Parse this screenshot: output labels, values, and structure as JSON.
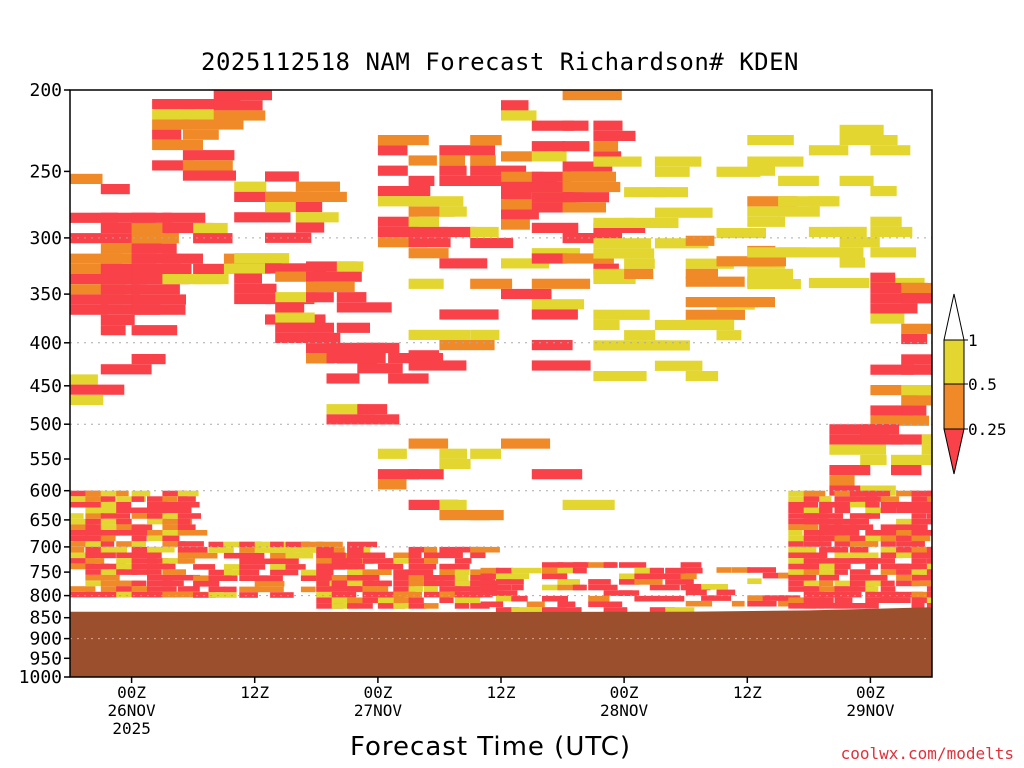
{
  "title": "2025112518 NAM Forecast Richardson# KDEN",
  "watermark": "coolwx.com/modelts",
  "chart_data": {
    "type": "heatmap",
    "title": "2025112518 NAM Forecast Richardson# KDEN",
    "xlabel": "Forecast Time (UTC)",
    "ylabel": "",
    "y_log_scale": true,
    "y_inverted": true,
    "ylim_hpa": [
      1000,
      200
    ],
    "y_ticks": [
      "200",
      "250",
      "300",
      "350",
      "400",
      "450",
      "500",
      "550",
      "600",
      "650",
      "700",
      "750",
      "800",
      "850",
      "900",
      "950",
      "1000"
    ],
    "y_grid_dotted_at": [
      300,
      400,
      500,
      600,
      700,
      800,
      900,
      1000
    ],
    "x_hours_range": [
      -6,
      78
    ],
    "x_ticks": [
      {
        "hour": 0,
        "lines": [
          "00Z",
          "26NOV",
          "2025"
        ]
      },
      {
        "hour": 12,
        "lines": [
          "12Z"
        ]
      },
      {
        "hour": 24,
        "lines": [
          "00Z",
          "27NOV"
        ]
      },
      {
        "hour": 36,
        "lines": [
          "12Z"
        ]
      },
      {
        "hour": 48,
        "lines": [
          "00Z",
          "28NOV"
        ]
      },
      {
        "hour": 60,
        "lines": [
          "12Z"
        ]
      },
      {
        "hour": 72,
        "lines": [
          "00Z",
          "29NOV"
        ]
      }
    ],
    "colorbar": {
      "levels": [
        "1",
        "0.5",
        "0.25"
      ],
      "bins": [
        {
          "range": "0.5-1",
          "color": "#e3d630"
        },
        {
          "range": "0.25-0.5",
          "color": "#f08a28"
        },
        {
          "range": "<0.25",
          "color": "#f94149"
        }
      ],
      "above_color": "#ffffff"
    },
    "terrain": {
      "color": "#9c4f2c",
      "surface_pressure_hpa": [
        {
          "hour": -6,
          "p": 836
        },
        {
          "hour": 30,
          "p": 837
        },
        {
          "hour": 54,
          "p": 836
        },
        {
          "hour": 66,
          "p": 833
        },
        {
          "hour": 78,
          "p": 826
        }
      ]
    },
    "colors": {
      "yellow": "#e3d630",
      "orange": "#f08a28",
      "red": "#f94149",
      "terrain": "#9c4f2c",
      "grid": "#aaaaaa"
    },
    "regions": [
      {
        "h": [
          -6,
          2
        ],
        "p": [
          280,
          390
        ],
        "level": "<0.25",
        "fill": "dense"
      },
      {
        "h": [
          -6,
          1
        ],
        "p": [
          390,
          470
        ],
        "level": "mixed",
        "fill": "sparse"
      },
      {
        "h": [
          -6,
          2
        ],
        "p": [
          225,
          260
        ],
        "level": "mixed",
        "fill": "sparse"
      },
      {
        "h": [
          2,
          7
        ],
        "p": [
          205,
          250
        ],
        "level": "mixed",
        "fill": "medium"
      },
      {
        "h": [
          3,
          12
        ],
        "p": [
          280,
          340
        ],
        "level": "mixed",
        "fill": "medium"
      },
      {
        "h": [
          8,
          11
        ],
        "p": [
          200,
          215
        ],
        "level": "<0.25",
        "fill": "dense"
      },
      {
        "h": [
          10,
          18
        ],
        "p": [
          250,
          380
        ],
        "level": "mixed",
        "fill": "medium"
      },
      {
        "h": [
          14,
          22
        ],
        "p": [
          320,
          420
        ],
        "level": "<0.25",
        "fill": "medium"
      },
      {
        "h": [
          19,
          27
        ],
        "p": [
          400,
          500
        ],
        "level": "<0.25",
        "fill": "medium"
      },
      {
        "h": [
          24,
          34
        ],
        "p": [
          220,
          300
        ],
        "level": "mixed",
        "fill": "medium"
      },
      {
        "h": [
          27,
          40
        ],
        "p": [
          300,
          420
        ],
        "level": "mixed",
        "fill": "sparse"
      },
      {
        "h": [
          36,
          42
        ],
        "p": [
          255,
          290
        ],
        "level": "<0.25",
        "fill": "dense"
      },
      {
        "h": [
          36,
          48
        ],
        "p": [
          200,
          340
        ],
        "level": "mixed",
        "fill": "sparse"
      },
      {
        "h": [
          45,
          62
        ],
        "p": [
          240,
          440
        ],
        "level": "0.5-1",
        "fill": "sparse"
      },
      {
        "h": [
          54,
          62
        ],
        "p": [
          290,
          360
        ],
        "level": "0.25-0.5",
        "fill": "sparse"
      },
      {
        "h": [
          60,
          74
        ],
        "p": [
          220,
          340
        ],
        "level": "0.5-1",
        "fill": "sparse"
      },
      {
        "h": [
          72,
          78
        ],
        "p": [
          330,
          500
        ],
        "level": "<0.25",
        "fill": "medium"
      },
      {
        "h": [
          68,
          78
        ],
        "p": [
          500,
          600
        ],
        "level": "mixed",
        "fill": "medium"
      },
      {
        "h": [
          24,
          44
        ],
        "p": [
          520,
          660
        ],
        "level": "mixed",
        "fill": "sparse"
      },
      {
        "h": [
          -6,
          6
        ],
        "p": [
          600,
          800
        ],
        "level": "mixed",
        "fill": "dense"
      },
      {
        "h": [
          6,
          22
        ],
        "p": [
          690,
          800
        ],
        "level": "mixed",
        "fill": "medium"
      },
      {
        "h": [
          18,
          34
        ],
        "p": [
          700,
          820
        ],
        "level": "<0.25",
        "fill": "dense"
      },
      {
        "h": [
          34,
          54
        ],
        "p": [
          730,
          830
        ],
        "level": "<0.25",
        "fill": "medium"
      },
      {
        "h": [
          54,
          64
        ],
        "p": [
          740,
          820
        ],
        "level": "mixed",
        "fill": "sparse"
      },
      {
        "h": [
          64,
          78
        ],
        "p": [
          600,
          820
        ],
        "level": "<0.25",
        "fill": "dense"
      }
    ]
  }
}
